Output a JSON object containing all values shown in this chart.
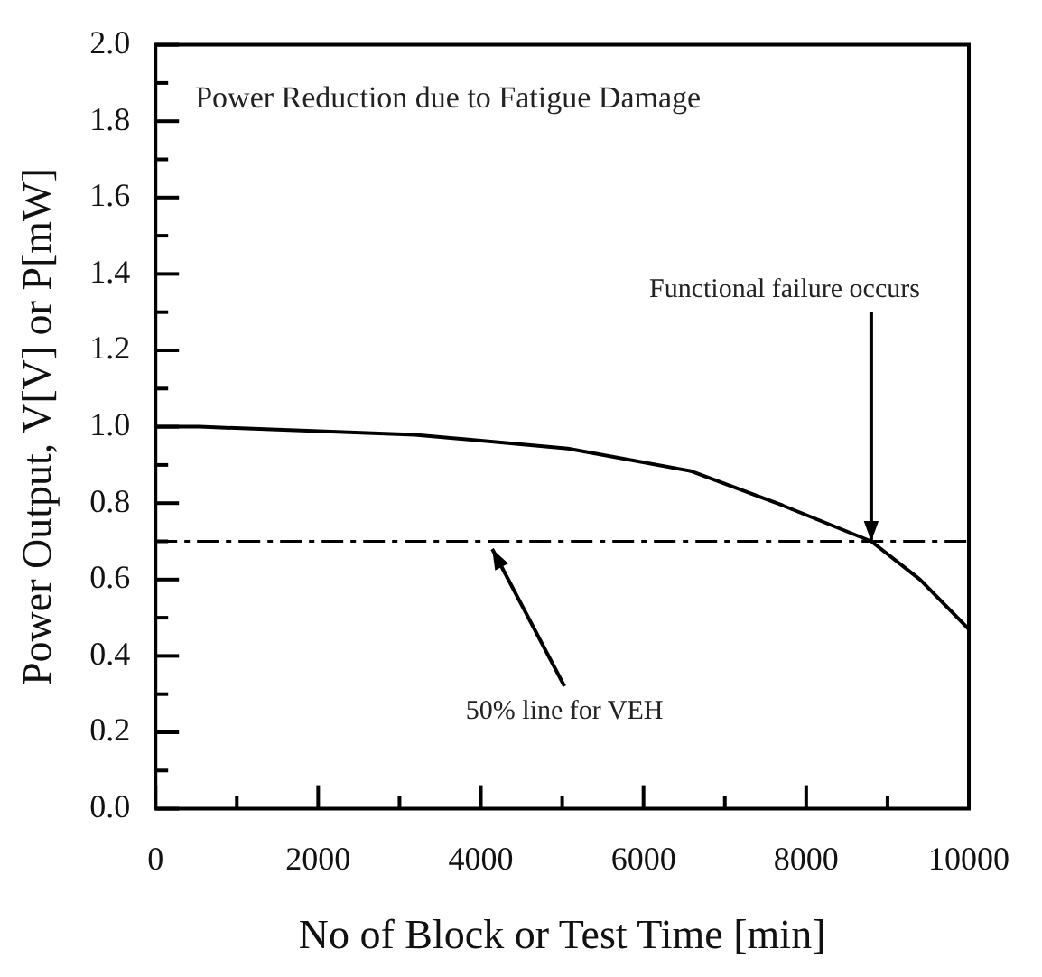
{
  "chart_data": {
    "type": "line",
    "title": "Power Reduction due to Fatigue Damage",
    "xlabel": "No of Block or Test Time [min]",
    "ylabel": "Power Output, V[V] or P[mW]",
    "x": [
      0,
      540,
      3190,
      5070,
      6580,
      7710,
      8800,
      9400,
      10000
    ],
    "series": [
      {
        "color": "#000000",
        "values": [
          1.0,
          1.0,
          0.979,
          0.943,
          0.884,
          0.794,
          0.7,
          0.6,
          0.47
        ]
      }
    ],
    "xlim": [
      0,
      10000
    ],
    "xticks": [
      0,
      {
        "value": 1000,
        "label": null
      },
      2000,
      {
        "value": 3000,
        "label": null
      },
      4000,
      {
        "value": 5000,
        "label": null
      },
      6000,
      {
        "value": 7000,
        "label": null
      },
      8000,
      {
        "value": 9000,
        "label": null
      },
      10000
    ],
    "ylim": [
      0,
      2
    ],
    "yticks": [
      {
        "value": 0,
        "label": "0.0"
      },
      {
        "value": 0.1,
        "label": null
      },
      {
        "value": 0.2,
        "label": "0.2"
      },
      {
        "value": 0.3,
        "label": null
      },
      {
        "value": 0.4,
        "label": "0.4"
      },
      {
        "value": 0.5,
        "label": null
      },
      {
        "value": 0.6,
        "label": "0.6"
      },
      {
        "value": 0.7,
        "label": null
      },
      {
        "value": 0.8,
        "label": "0.8"
      },
      {
        "value": 0.9,
        "label": null
      },
      {
        "value": 1.0,
        "label": "1.0"
      },
      {
        "value": 1.1,
        "label": null
      },
      {
        "value": 1.2,
        "label": "1.2"
      },
      {
        "value": 1.3,
        "label": null
      },
      {
        "value": 1.4,
        "label": "1.4"
      },
      {
        "value": 1.5,
        "label": null
      },
      {
        "value": 1.6,
        "label": "1.6"
      },
      {
        "value": 1.7,
        "label": null
      },
      {
        "value": 1.8,
        "label": "1.8"
      },
      {
        "value": 1.9,
        "label": null
      },
      {
        "value": 2.0,
        "label": "2.0"
      }
    ],
    "ref_lines": [
      {
        "axis": "y",
        "value": 0.7,
        "color": "#000000",
        "line_style": "dashdot"
      }
    ],
    "annotations": [
      {
        "text": "Functional failure occurs",
        "x": 8800,
        "y": 0.7
      },
      {
        "text": "50% line for VEH",
        "x": 4140,
        "y": 0.68
      }
    ],
    "grid": false,
    "legend": false,
    "marker": "none",
    "line_style": "solid"
  }
}
